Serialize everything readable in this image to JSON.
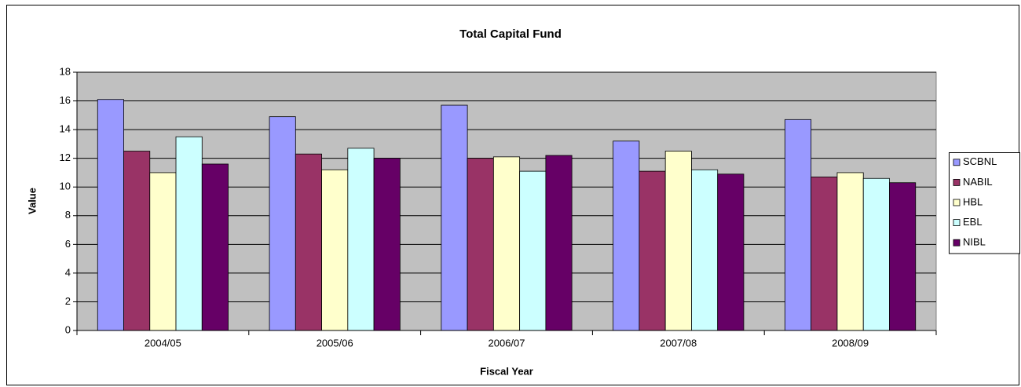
{
  "chart_data": {
    "type": "bar",
    "title": "Total Capital Fund",
    "x_label": "Fiscal Year",
    "y_label": "Value",
    "categories": [
      "2004/05",
      "2005/06",
      "2006/07",
      "2007/08",
      "2008/09"
    ],
    "series": [
      {
        "name": "SCBNL",
        "color": "#9999ff",
        "values": [
          16.1,
          14.9,
          15.7,
          13.2,
          14.7
        ]
      },
      {
        "name": "NABIL",
        "color": "#993366",
        "values": [
          12.5,
          12.3,
          12.0,
          11.1,
          10.7
        ]
      },
      {
        "name": "HBL",
        "color": "#ffffcc",
        "values": [
          11.0,
          11.2,
          12.1,
          12.5,
          11.0
        ]
      },
      {
        "name": "EBL",
        "color": "#ccffff",
        "values": [
          13.5,
          12.7,
          11.1,
          11.2,
          10.6
        ]
      },
      {
        "name": "NIBL",
        "color": "#660066",
        "values": [
          11.6,
          12.0,
          12.2,
          10.9,
          10.3
        ]
      }
    ],
    "ylim": [
      0,
      18
    ],
    "yticks": [
      0,
      2,
      4,
      6,
      8,
      10,
      12,
      14,
      16,
      18
    ],
    "grid": true,
    "legend": "right",
    "plot_background": "#c0c0c0"
  }
}
